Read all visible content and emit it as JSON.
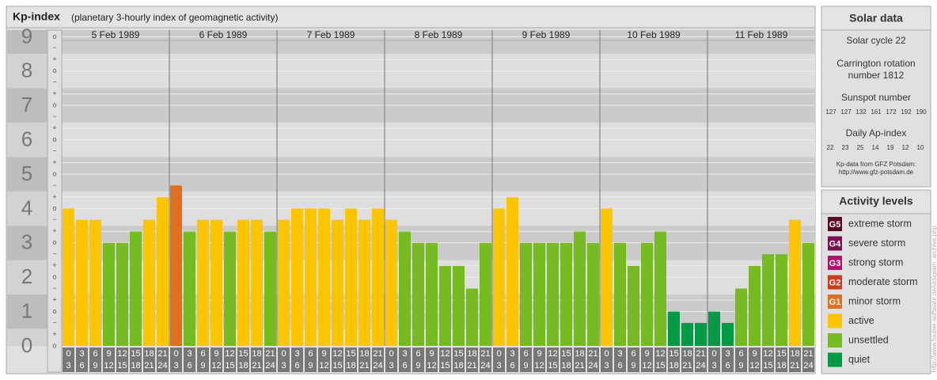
{
  "chart_data": {
    "type": "bar",
    "title": "Kp-index",
    "subtitle": "(planetary 3-hourly index of geomagnetic activity)",
    "days": [
      "5 Feb 1989",
      "6 Feb 1989",
      "7 Feb 1989",
      "8 Feb 1989",
      "9 Feb 1989",
      "10 Feb 1989",
      "11 Feb 1989"
    ],
    "intervals": [
      [
        "0",
        "3"
      ],
      [
        "3",
        "6"
      ],
      [
        "6",
        "9"
      ],
      [
        "9",
        "12"
      ],
      [
        "12",
        "15"
      ],
      [
        "15",
        "18"
      ],
      [
        "18",
        "21"
      ],
      [
        "21",
        "24"
      ]
    ],
    "values": [
      4,
      3.67,
      3.67,
      3,
      3,
      3.33,
      3.67,
      4.33,
      4.67,
      3.33,
      3.67,
      3.67,
      3.33,
      3.67,
      3.67,
      3.33,
      3.67,
      4,
      4,
      4,
      3.67,
      4,
      3.67,
      4,
      3.67,
      3.33,
      3,
      3,
      2.33,
      2.33,
      1.67,
      3,
      4,
      4.33,
      3,
      3,
      3,
      3,
      3.33,
      3,
      4,
      3,
      2.33,
      3,
      3.33,
      1,
      0.67,
      0.67,
      1,
      0.67,
      1.67,
      2.33,
      2.67,
      2.67,
      3.67,
      3
    ],
    "colors": [
      "#fcc500",
      "#fcc500",
      "#fcc500",
      "#77bb22",
      "#77bb22",
      "#77bb22",
      "#fcc500",
      "#fcc500",
      "#e07020",
      "#77bb22",
      "#fcc500",
      "#fcc500",
      "#77bb22",
      "#fcc500",
      "#fcc500",
      "#77bb22",
      "#fcc500",
      "#fcc500",
      "#fcc500",
      "#fcc500",
      "#fcc500",
      "#fcc500",
      "#fcc500",
      "#fcc500",
      "#fcc500",
      "#77bb22",
      "#77bb22",
      "#77bb22",
      "#77bb22",
      "#77bb22",
      "#77bb22",
      "#77bb22",
      "#fcc500",
      "#fcc500",
      "#77bb22",
      "#77bb22",
      "#77bb22",
      "#77bb22",
      "#77bb22",
      "#77bb22",
      "#fcc500",
      "#77bb22",
      "#77bb22",
      "#77bb22",
      "#77bb22",
      "#009944",
      "#009944",
      "#009944",
      "#009944",
      "#009944",
      "#77bb22",
      "#77bb22",
      "#77bb22",
      "#77bb22",
      "#fcc500",
      "#77bb22"
    ],
    "ylim": [
      0,
      9.17
    ],
    "yticks": [
      0,
      1,
      2,
      3,
      4,
      5,
      6,
      7,
      8,
      9
    ],
    "ysub_labels": [
      "o",
      "+",
      "−"
    ],
    "solar": {
      "title": "Solar data",
      "cycle": "Solar cycle 22",
      "rotation": [
        "Carrington rotation",
        "number 1812"
      ],
      "sunspot_title": "Sunspot number",
      "sunspot": [
        127,
        127,
        132,
        161,
        172,
        192,
        190
      ],
      "ap_title": "Daily Ap-index",
      "ap": [
        22,
        23,
        25,
        14,
        19,
        12,
        10
      ],
      "source": [
        "Kp-data from GFZ Potsdam:",
        "http://www.gfz-potsdam.de"
      ]
    },
    "legend": {
      "title": "Activity levels",
      "items": [
        {
          "code": "G5",
          "label": "extreme storm",
          "color": "#5c0a2a"
        },
        {
          "code": "G4",
          "label": "severe storm",
          "color": "#7a1050"
        },
        {
          "code": "G3",
          "label": "strong storm",
          "color": "#b01468"
        },
        {
          "code": "G2",
          "label": "moderate storm",
          "color": "#d03a1e"
        },
        {
          "code": "G1",
          "label": "minor storm",
          "color": "#e07020"
        },
        {
          "label": "active",
          "color": "#fcc500"
        },
        {
          "label": "unsettled",
          "color": "#77bb22"
        },
        {
          "label": "quiet",
          "color": "#009944"
        }
      ]
    },
    "credit": "http://www.fourier-software.de/ursigram_archive.php"
  }
}
